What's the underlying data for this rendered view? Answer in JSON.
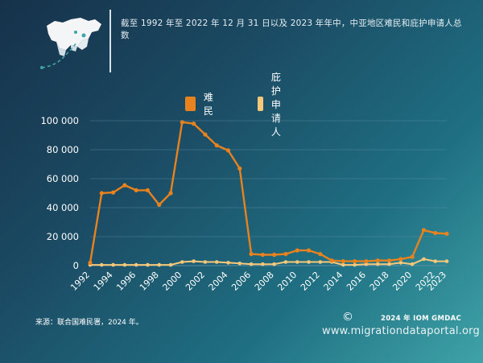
{
  "header": {
    "title": "截至 1992 年至 2022 年 12 月 31 日以及 2023 年年中，中亚地区难民和庇护申请人总数"
  },
  "chart_data": {
    "type": "line",
    "title": "",
    "xlabel": "",
    "ylabel": "",
    "ylim": [
      0,
      100000
    ],
    "yticks": [
      "0",
      "20 000",
      "40 000",
      "60 000",
      "80 000",
      "100 000"
    ],
    "ytick_values": [
      0,
      20000,
      40000,
      60000,
      80000,
      100000
    ],
    "x": [
      1992,
      1993,
      1994,
      1995,
      1996,
      1997,
      1998,
      1999,
      2000,
      2001,
      2002,
      2003,
      2004,
      2005,
      2006,
      2007,
      2008,
      2009,
      2010,
      2011,
      2012,
      2013,
      2014,
      2015,
      2016,
      2017,
      2018,
      2019,
      2020,
      2021,
      2022,
      2023
    ],
    "xticks": [
      "1992",
      "1994",
      "1996",
      "1998",
      "2000",
      "2002",
      "2004",
      "2006",
      "2008",
      "2010",
      "2012",
      "2014",
      "2016",
      "2018",
      "2020",
      "2022",
      "2023"
    ],
    "legend_position": "top",
    "grid": true,
    "series": [
      {
        "name": "难民",
        "color": "#e8821e",
        "values": [
          2000,
          50000,
          50500,
          55500,
          52000,
          52000,
          42000,
          50000,
          99000,
          98000,
          90500,
          83000,
          79500,
          67000,
          8000,
          7500,
          7500,
          8000,
          10500,
          10500,
          8000,
          3500,
          3000,
          3000,
          3000,
          3500,
          3500,
          4500,
          6000,
          24500,
          22500,
          22000
        ]
      },
      {
        "name": "庇护申请人",
        "color": "#f7c87a",
        "values": [
          500,
          500,
          500,
          500,
          500,
          500,
          500,
          500,
          2500,
          3000,
          2500,
          2500,
          2000,
          1500,
          1000,
          1000,
          1000,
          2500,
          2500,
          2500,
          2500,
          2500,
          500,
          500,
          1000,
          1000,
          1000,
          2000,
          1000,
          4500,
          3000,
          3000
        ]
      }
    ]
  },
  "footer": {
    "source": "来源：联合国难民署，2024 年。",
    "copyright_symbol": "©",
    "org": "2024 年 IOM GMDAC",
    "url": "www.migrationdataportal.org"
  },
  "colors": {
    "background_start": "#16324a",
    "background_end": "#3fa3a8",
    "grid": "#5f8fa8",
    "axis_text": "#ffffff"
  }
}
